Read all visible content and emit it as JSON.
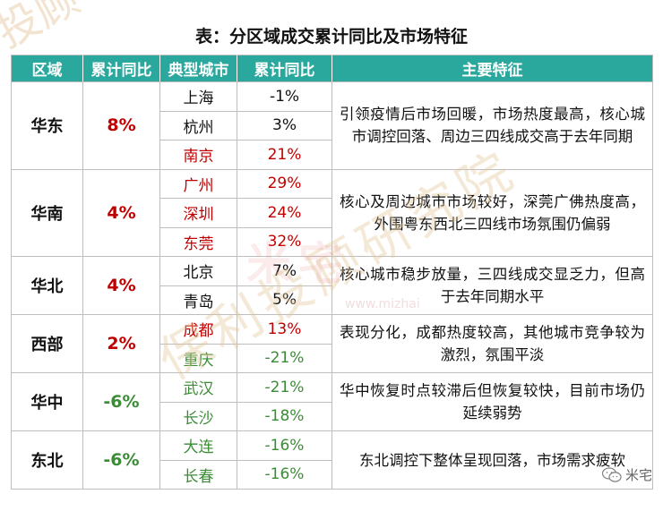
{
  "title": "表：分区域成交累计同比及市场特征",
  "headers": [
    "区域",
    "累计同比",
    "典型城市",
    "累计同比",
    "主要特征"
  ],
  "regions": [
    {
      "name": "华东",
      "pct": "8%",
      "feature": "引领疫情后市场回暖，市场热度最高，核心城市调控回落、周边三四线成交高于去年同期",
      "cities": [
        {
          "city": "上海",
          "pct": "-1%"
        },
        {
          "city": "杭州",
          "pct": "3%"
        },
        {
          "city": "南京",
          "pct": "21%"
        }
      ]
    },
    {
      "name": "华南",
      "pct": "4%",
      "feature": "核心及周边城市市场较好，深莞广佛热度高，外围粤东西北三四线市场氛围仍偏弱",
      "cities": [
        {
          "city": "广州",
          "pct": "29%"
        },
        {
          "city": "深圳",
          "pct": "24%"
        },
        {
          "city": "东莞",
          "pct": "32%"
        }
      ]
    },
    {
      "name": "华北",
      "pct": "4%",
      "feature": "核心城市稳步放量，三四线成交显乏力，但高于去年同期水平",
      "cities": [
        {
          "city": "北京",
          "pct": "7%"
        },
        {
          "city": "青岛",
          "pct": "5%"
        }
      ]
    },
    {
      "name": "西部",
      "pct": "2%",
      "feature": "表现分化，成都热度较高，其他城市竞争较为激烈，氛围平淡",
      "cities": [
        {
          "city": "成都",
          "pct": "13%"
        },
        {
          "city": "重庆",
          "pct": "-21%"
        }
      ]
    },
    {
      "name": "华中",
      "pct": "-6%",
      "feature": "华中恢复时点较滞后但恢复较快，目前市场仍延续弱势",
      "cities": [
        {
          "city": "武汉",
          "pct": "-21%"
        },
        {
          "city": "长沙",
          "pct": "-18%"
        }
      ]
    },
    {
      "name": "东北",
      "pct": "-6%",
      "feature": "东北调控下整体呈现回落，市场需求疲软",
      "cities": [
        {
          "city": "大连",
          "pct": "-16%"
        },
        {
          "city": "长春",
          "pct": "-16%"
        }
      ]
    }
  ],
  "watermark": {
    "text": "保利投顾研究院",
    "partial_top": "投顾",
    "red": "米宅",
    "url": "www.mizhai"
  },
  "wechat_label": "米宅",
  "colors": {
    "header": "#2aa89d",
    "positive": "#c00000",
    "negative": "#3a8c35",
    "text": "#111111"
  }
}
